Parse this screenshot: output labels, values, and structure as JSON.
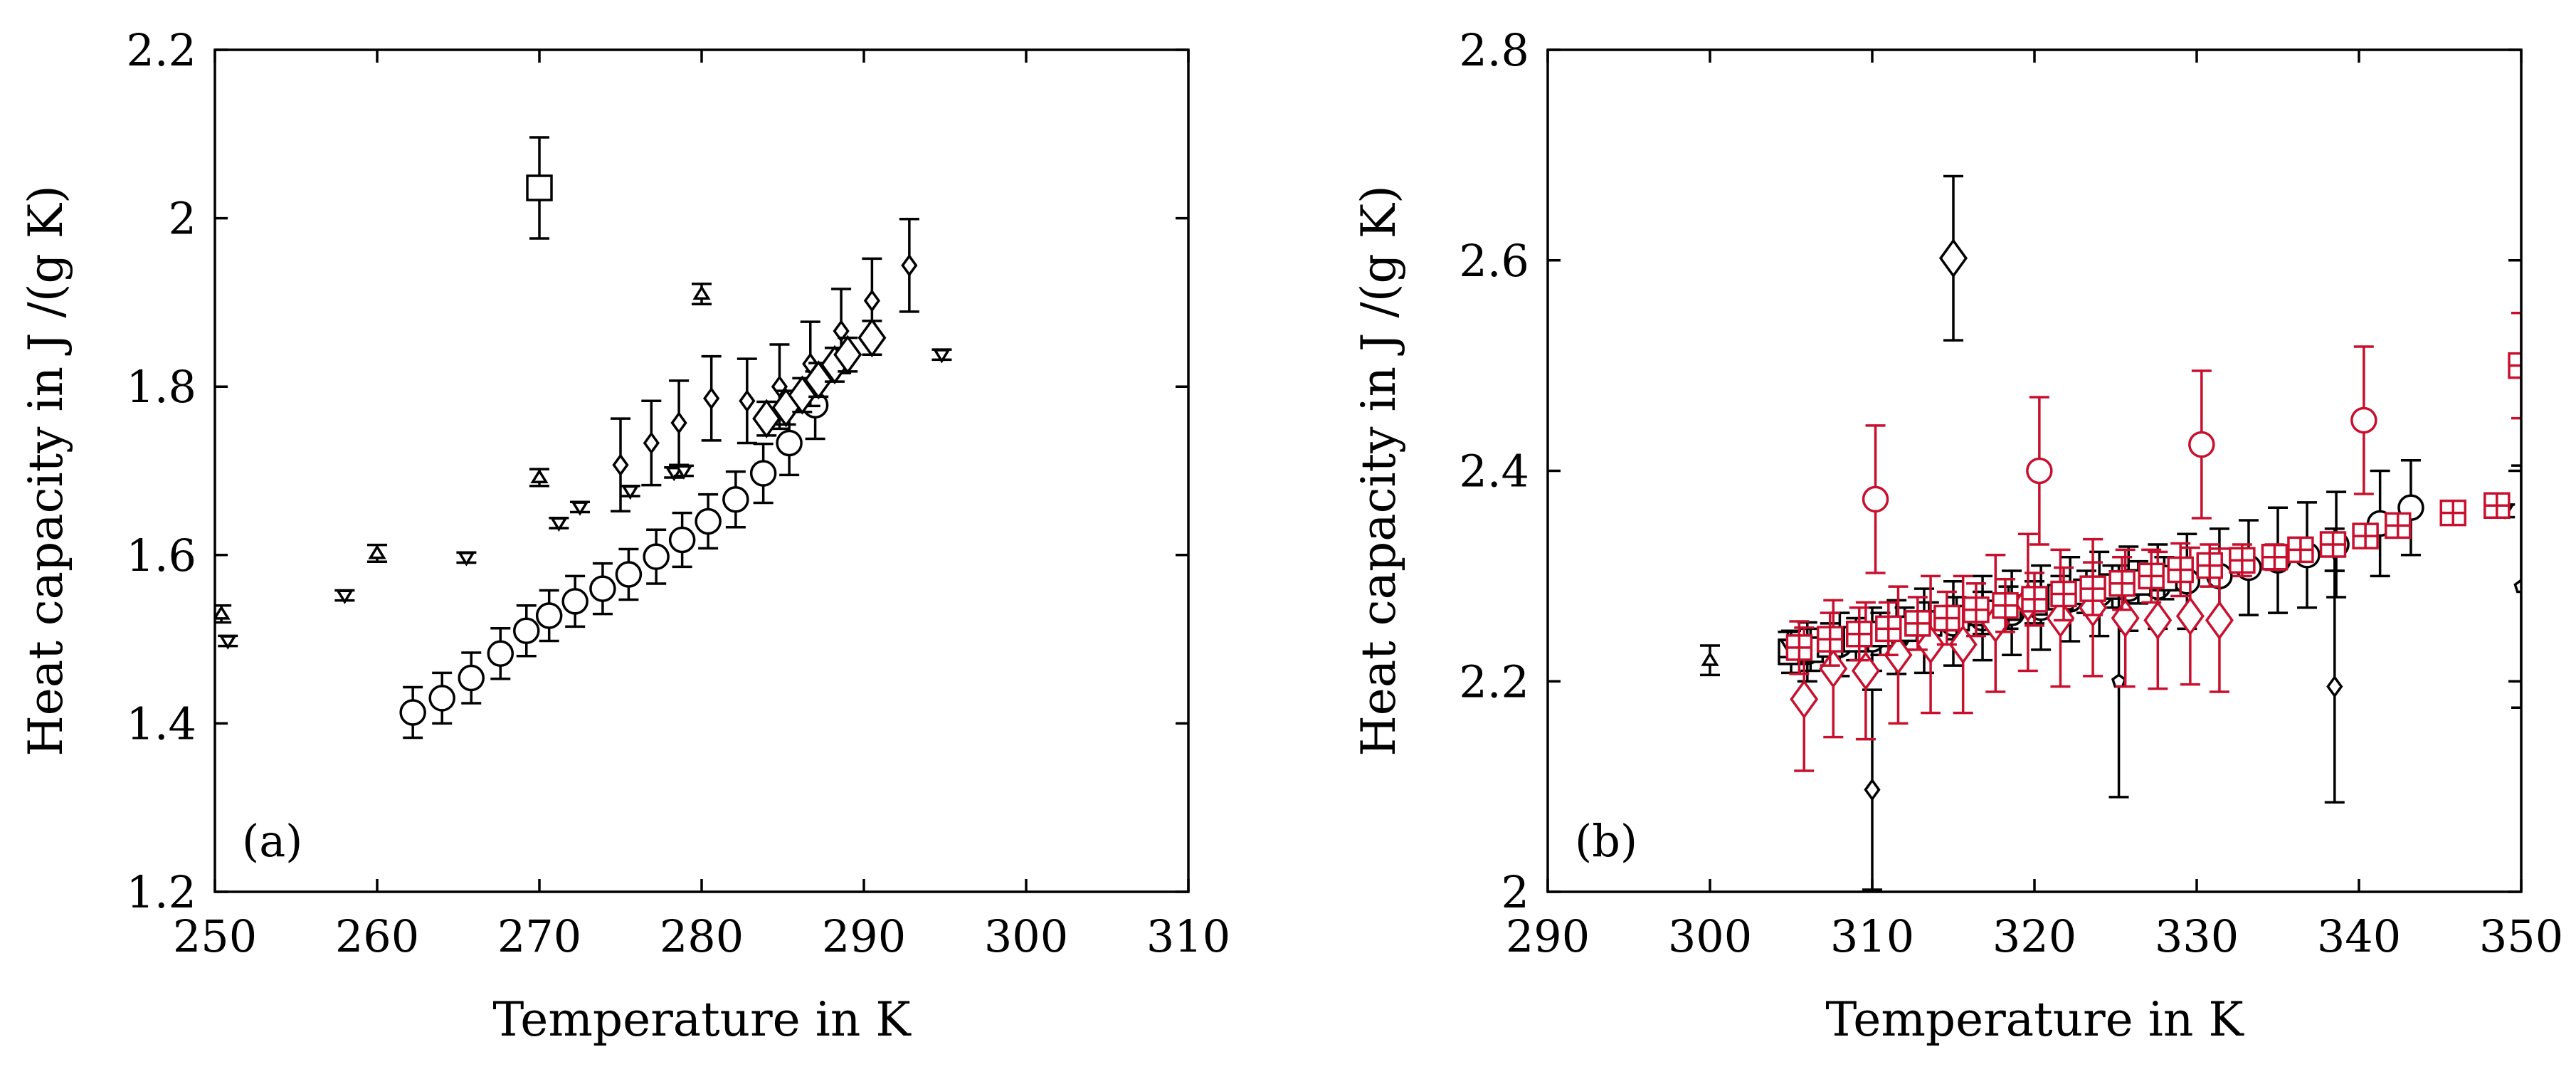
{
  "colors": {
    "black": "#000000",
    "red": "#c8102e"
  },
  "chart_data": [
    {
      "panel_label": "(a)",
      "type": "scatter",
      "xlabel": "Temperature in K",
      "ylabel": "Heat capacity in J /(g K)",
      "xlim": [
        250,
        310
      ],
      "ylim": [
        1.2,
        2.2
      ],
      "xticks": [
        "250",
        "260",
        "270",
        "280",
        "290",
        "300",
        "310"
      ],
      "yticks": [
        "1.2",
        "1.4",
        "1.6",
        "1.8",
        "2",
        "2.2"
      ],
      "grid": false,
      "legend": "none",
      "series": [
        {
          "marker": "circle",
          "color": "#000000",
          "size": "large",
          "points": [
            [
              262.2,
              1.413,
              0.03
            ],
            [
              264,
              1.43,
              0.03
            ],
            [
              265.8,
              1.454,
              0.03
            ],
            [
              267.6,
              1.483,
              0.03
            ],
            [
              269.2,
              1.51,
              0.03
            ],
            [
              270.6,
              1.528,
              0.03
            ],
            [
              272.2,
              1.545,
              0.03
            ],
            [
              273.9,
              1.56,
              0.03
            ],
            [
              275.5,
              1.577,
              0.03
            ],
            [
              277.2,
              1.598,
              0.032
            ],
            [
              278.8,
              1.618,
              0.032
            ],
            [
              280.4,
              1.64,
              0.032
            ],
            [
              282.1,
              1.666,
              0.033
            ],
            [
              283.8,
              1.697,
              0.035
            ],
            [
              285.4,
              1.733,
              0.038
            ],
            [
              287,
              1.778,
              0.04
            ]
          ]
        },
        {
          "marker": "diamond",
          "color": "#000000",
          "size": "small",
          "points": [
            [
              275,
              1.707,
              0.055
            ],
            [
              276.9,
              1.733,
              0.05
            ],
            [
              278.6,
              1.757,
              0.05
            ],
            [
              280.6,
              1.786,
              0.05
            ],
            [
              282.8,
              1.783,
              0.05
            ],
            [
              284.8,
              1.8,
              0.05
            ],
            [
              286.7,
              1.827,
              0.05
            ],
            [
              288.6,
              1.866,
              0.05
            ],
            [
              290.5,
              1.902,
              0.05
            ],
            [
              292.8,
              1.944,
              0.055
            ]
          ]
        },
        {
          "marker": "diamond",
          "color": "#000000",
          "size": "large",
          "points": [
            [
              284,
              1.762,
              0.02
            ],
            [
              285.2,
              1.775,
              0.02
            ],
            [
              286.2,
              1.79,
              0.02
            ],
            [
              287.2,
              1.808,
              0.02
            ],
            [
              288.2,
              1.826,
              0.02
            ],
            [
              289,
              1.838,
              0.02
            ],
            [
              290.5,
              1.858,
              0.02
            ]
          ]
        },
        {
          "marker": "triangle-up",
          "color": "#000000",
          "size": "small",
          "points": [
            [
              250.4,
              1.53,
              0.01
            ],
            [
              260,
              1.602,
              0.01
            ],
            [
              270,
              1.692,
              0.01
            ],
            [
              280,
              1.91,
              0.012
            ]
          ]
        },
        {
          "marker": "triangle-down",
          "color": "#000000",
          "size": "small",
          "points": [
            [
              250.8,
              1.498,
              0.006
            ],
            [
              258,
              1.552,
              0.006
            ],
            [
              265.5,
              1.597,
              0.006
            ],
            [
              271.2,
              1.638,
              0.006
            ],
            [
              272.5,
              1.657,
              0.006
            ],
            [
              275.6,
              1.676,
              0.006
            ],
            [
              278.3,
              1.698,
              0.006
            ],
            [
              278.9,
              1.7,
              0.006
            ],
            [
              294.8,
              1.838,
              0.006
            ]
          ]
        },
        {
          "marker": "square",
          "color": "#000000",
          "size": "large",
          "points": [
            [
              270,
              2.036,
              0.06
            ]
          ]
        }
      ]
    },
    {
      "panel_label": "(b)",
      "type": "scatter",
      "xlabel": "Temperature in K",
      "ylabel": "Heat capacity in J /(g K)",
      "xlim": [
        290,
        350
      ],
      "ylim": [
        2,
        2.8
      ],
      "xticks": [
        "290",
        "300",
        "310",
        "320",
        "330",
        "340",
        "350"
      ],
      "yticks": [
        "2",
        "2.2",
        "2.4",
        "2.6",
        "2.8"
      ],
      "grid": false,
      "legend": "none",
      "series": [
        {
          "marker": "circle",
          "color": "#000000",
          "size": "large",
          "points": [
            [
              306,
              2.228,
              0.028
            ],
            [
              308,
              2.235,
              0.03
            ],
            [
              310,
              2.24,
              0.03
            ],
            [
              311.5,
              2.242,
              0.035
            ],
            [
              313.2,
              2.248,
              0.04
            ],
            [
              315,
              2.255,
              0.04
            ],
            [
              316.8,
              2.26,
              0.04
            ],
            [
              318.6,
              2.265,
              0.04
            ],
            [
              320.4,
              2.27,
              0.04
            ],
            [
              322.2,
              2.278,
              0.04
            ],
            [
              324,
              2.283,
              0.04
            ],
            [
              325.8,
              2.288,
              0.04
            ],
            [
              327.6,
              2.29,
              0.04
            ],
            [
              329.4,
              2.295,
              0.045
            ],
            [
              331.4,
              2.3,
              0.045
            ],
            [
              333.2,
              2.308,
              0.045
            ],
            [
              335,
              2.315,
              0.05
            ],
            [
              336.8,
              2.32,
              0.05
            ],
            [
              338.6,
              2.33,
              0.05
            ],
            [
              341.3,
              2.35,
              0.05
            ],
            [
              343.2,
              2.365,
              0.045
            ]
          ]
        },
        {
          "marker": "square",
          "color": "#000000",
          "size": "large",
          "points": [
            [
              305,
              2.228,
              0.02
            ],
            [
              306.2,
              2.23,
              0.02
            ],
            [
              307.4,
              2.235,
              0.02
            ],
            [
              309,
              2.24,
              0.02
            ],
            [
              310.5,
              2.245,
              0.02
            ],
            [
              312,
              2.25,
              0.02
            ],
            [
              313.5,
              2.255,
              0.02
            ],
            [
              315.2,
              2.26,
              0.02
            ],
            [
              316.8,
              2.265,
              0.02
            ],
            [
              318.4,
              2.27,
              0.02
            ],
            [
              320,
              2.275,
              0.02
            ],
            [
              321.6,
              2.28,
              0.02
            ],
            [
              323.2,
              2.285,
              0.02
            ],
            [
              324.8,
              2.29,
              0.02
            ],
            [
              326.4,
              2.294,
              0.02
            ],
            [
              328,
              2.298,
              0.02
            ]
          ]
        },
        {
          "marker": "triangle-up",
          "color": "#000000",
          "size": "small",
          "points": [
            [
              300,
              2.22,
              0.014
            ]
          ]
        },
        {
          "marker": "triangle-down",
          "color": "#000000",
          "size": "small",
          "points": [
            [
              304.8,
              2.235,
              0.012
            ],
            [
              349,
              2.362,
              0.006
            ]
          ]
        },
        {
          "marker": "pentagon",
          "color": "#000000",
          "size": "small",
          "points": [
            [
              325.2,
              2.2,
              0.11
            ],
            [
              350,
              2.29,
              0.115
            ]
          ]
        },
        {
          "marker": "diamond",
          "color": "#000000",
          "size": "small",
          "points": [
            [
              310,
              2.097,
              0.095
            ],
            [
              338.5,
              2.195,
              0.11
            ],
            [
              338.5,
              2.325,
              0.02
            ]
          ]
        },
        {
          "marker": "diamond",
          "color": "#000000",
          "size": "large",
          "points": [
            [
              315,
              2.602,
              0.078
            ]
          ]
        },
        {
          "marker": "diamond",
          "color": "#c8102e",
          "size": "large",
          "points": [
            [
              305.8,
              2.183,
              0.068
            ],
            [
              307.6,
              2.212,
              0.065
            ],
            [
              309.6,
              2.21,
              0.065
            ],
            [
              311.6,
              2.225,
              0.065
            ],
            [
              313.6,
              2.235,
              0.065
            ],
            [
              315.6,
              2.235,
              0.065
            ],
            [
              317.6,
              2.255,
              0.065
            ],
            [
              319.6,
              2.275,
              0.065
            ],
            [
              321.6,
              2.26,
              0.065
            ],
            [
              323.6,
              2.27,
              0.065
            ],
            [
              325.6,
              2.26,
              0.065
            ],
            [
              327.6,
              2.258,
              0.065
            ],
            [
              329.6,
              2.262,
              0.065
            ],
            [
              331.4,
              2.258,
              0.068
            ]
          ]
        },
        {
          "marker": "circle",
          "color": "#c8102e",
          "size": "large",
          "points": [
            [
              310.2,
              2.373,
              0.07
            ],
            [
              320.3,
              2.4,
              0.07
            ],
            [
              330.3,
              2.425,
              0.07
            ],
            [
              340.3,
              2.448,
              0.07
            ]
          ]
        },
        {
          "marker": "square-plus",
          "color": "#c8102e",
          "size": "large",
          "points": [
            [
              305.5,
              2.232,
              0.025
            ],
            [
              307.4,
              2.24,
              0.025
            ],
            [
              309.2,
              2.245,
              0.025
            ],
            [
              311,
              2.25,
              0.025
            ],
            [
              312.8,
              2.255,
              0.025
            ],
            [
              314.6,
              2.26,
              0.025
            ],
            [
              316.4,
              2.268,
              0.025
            ],
            [
              318.2,
              2.272,
              0.025
            ],
            [
              320,
              2.278,
              0.025
            ],
            [
              321.8,
              2.283,
              0.025
            ],
            [
              323.6,
              2.288,
              0.025
            ],
            [
              325.4,
              2.293,
              0.025
            ],
            [
              327.2,
              2.3,
              0.025
            ],
            [
              329,
              2.306,
              0.025
            ],
            [
              330.8,
              2.31,
              0.02
            ],
            [
              332.8,
              2.315,
              0.015
            ],
            [
              334.8,
              2.318,
              0.012
            ],
            [
              336.4,
              2.325,
              0.01
            ],
            [
              338.4,
              2.33,
              0.01
            ],
            [
              340.4,
              2.338,
              0.01
            ],
            [
              342.4,
              2.348,
              0.008
            ],
            [
              345.8,
              2.36,
              0.006
            ],
            [
              348.5,
              2.367,
              0.006
            ]
          ]
        },
        {
          "marker": "square-plus",
          "color": "#c8102e",
          "size": "large",
          "points": [
            [
              350,
              2.5,
              0.05
            ]
          ]
        }
      ]
    }
  ]
}
